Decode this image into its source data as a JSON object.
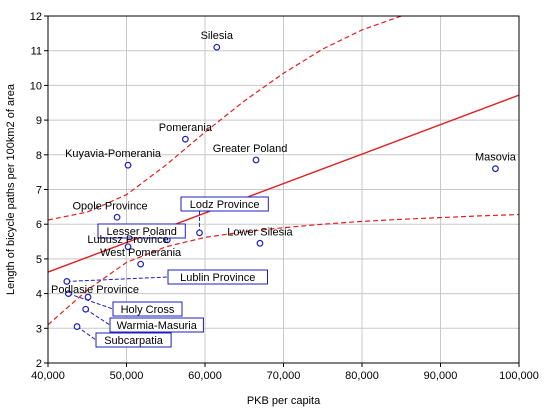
{
  "chart_data": {
    "type": "scatter",
    "title": "",
    "xlabel": "PKB per capita",
    "ylabel": "Length of bicycle paths per 100km2 of area",
    "xlim": [
      40000,
      100000
    ],
    "ylim": [
      2,
      12
    ],
    "x_ticks": [
      40000,
      50000,
      60000,
      70000,
      80000,
      90000,
      100000
    ],
    "x_tick_labels": [
      "40,000",
      "50,000",
      "60,000",
      "70,000",
      "80,000",
      "90,000",
      "100,000"
    ],
    "y_ticks": [
      2,
      3,
      4,
      5,
      6,
      7,
      8,
      9,
      10,
      11,
      12
    ],
    "y_tick_labels": [
      "2",
      "3",
      "4",
      "5",
      "6",
      "7",
      "8",
      "9",
      "10",
      "11",
      "12"
    ],
    "grid": true,
    "colors": {
      "points": "#1f1fbf",
      "fit": "#e02020",
      "callout": "#1f1fbf"
    },
    "points": [
      {
        "name": "Silesia",
        "x": 61500,
        "y": 11.1,
        "label_dx": 0,
        "label_dy": -1
      },
      {
        "name": "Pomerania",
        "x": 57500,
        "y": 8.45,
        "label_dx": 0,
        "label_dy": -1
      },
      {
        "name": "Greater Poland",
        "x": 66500,
        "y": 7.85,
        "label_dx": 0,
        "label_dy": -1
      },
      {
        "name": "Masovia",
        "x": 97000,
        "y": 7.6,
        "label_dx": 0,
        "label_dy": -1
      },
      {
        "name": "Kuyavia-Pomerania",
        "x": 50200,
        "y": 7.7,
        "label_dx": 0,
        "label_dy": -1
      },
      {
        "name": "Opole Province",
        "x": 48800,
        "y": 6.2,
        "label_dx": 0,
        "label_dy": -1
      },
      {
        "name": "Lodz Province",
        "x": 59300,
        "y": 5.75,
        "boxed": true
      },
      {
        "name": "Lesser Poland",
        "x": 55200,
        "y": 5.55,
        "boxed": true
      },
      {
        "name": "Lubusz Province",
        "x": 50200,
        "y": 5.35,
        "label_dx": 0,
        "label_dy": -1
      },
      {
        "name": "Lower Silesia",
        "x": 67000,
        "y": 5.45,
        "label_dx": 0,
        "label_dy": -1
      },
      {
        "name": "West Pomerania",
        "x": 51800,
        "y": 4.85,
        "label_dx": 0,
        "label_dy": -1
      },
      {
        "name": "Lublin Province",
        "x": 42400,
        "y": 4.35,
        "boxed": true
      },
      {
        "name": "Podlasie Province",
        "x": 45100,
        "y": 3.9,
        "label_dx": 0,
        "label_dy": -1
      },
      {
        "name": "Holy Cross",
        "x": 42600,
        "y": 4.0,
        "boxed": true
      },
      {
        "name": "Warmia-Masuria",
        "x": 44800,
        "y": 3.55,
        "boxed": true
      },
      {
        "name": "Subcarpatia",
        "x": 43700,
        "y": 3.05,
        "boxed": true
      }
    ],
    "fit_line": {
      "x": [
        40000,
        100000
      ],
      "y": [
        4.62,
        9.72
      ]
    },
    "confidence_upper": {
      "x": [
        40000,
        45000,
        50000,
        55000,
        60000,
        65000,
        70000,
        75000,
        80000,
        85000,
        87000
      ],
      "y": [
        6.12,
        6.35,
        6.85,
        7.7,
        8.65,
        9.55,
        10.35,
        11.05,
        11.6,
        12.0,
        12.2
      ]
    },
    "confidence_lower": {
      "x": [
        40000,
        45000,
        50000,
        55000,
        60000,
        65000,
        70000,
        75000,
        80000,
        85000,
        90000,
        95000,
        100000
      ],
      "y": [
        3.1,
        4.1,
        4.9,
        5.35,
        5.62,
        5.78,
        5.9,
        6.0,
        6.08,
        6.14,
        6.19,
        6.24,
        6.28
      ]
    }
  }
}
